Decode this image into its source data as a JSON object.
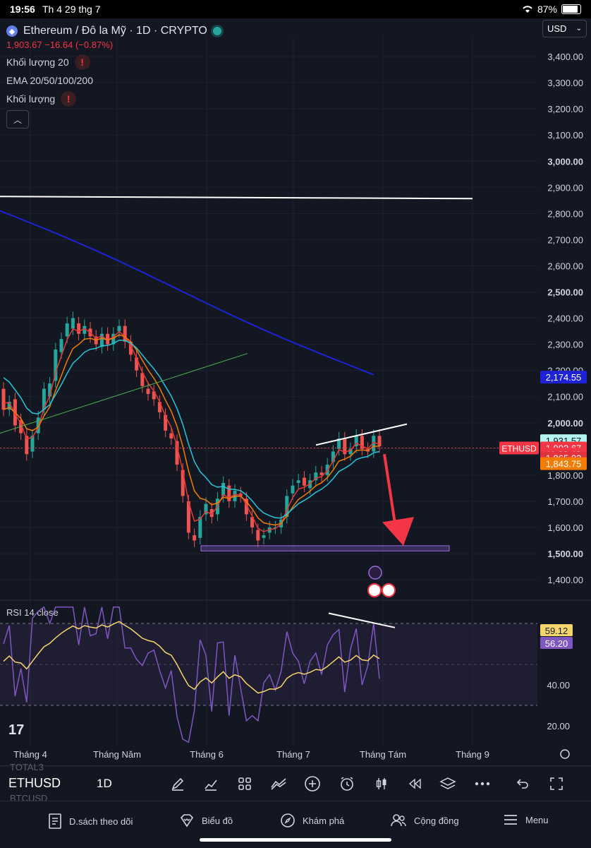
{
  "status_bar": {
    "time": "19:56",
    "date": "Th 4 29 thg 7",
    "battery": "87%",
    "battery_level": 0.87
  },
  "header": {
    "title": "Ethereum / Đô la Mỹ · 1D · CRYPTO",
    "price": "1,903.67",
    "change": "−16.64 (−0.87%)",
    "currency": "USD"
  },
  "indicators": [
    {
      "label": "Khối lượng 20",
      "warning": true
    },
    {
      "label": "EMA 20/50/100/200",
      "warning": false
    },
    {
      "label": "Khối lượng",
      "warning": true
    }
  ],
  "price_axis": {
    "ticks": [
      "3,400.00",
      "3,300.00",
      "3,200.00",
      "3,100.00",
      "3,000.00",
      "2,900.00",
      "2,800.00",
      "2,700.00",
      "2,600.00",
      "2,500.00",
      "2,400.00",
      "2,300.00",
      "2,200.00",
      "2,100.00",
      "2,000.00",
      "1,900.00",
      "1,800.00",
      "1,700.00",
      "1,600.00",
      "1,500.00",
      "1,400.00"
    ],
    "bold_ticks": [
      "3,000.00",
      "2,500.00",
      "2,000.00",
      "1,500.00"
    ]
  },
  "price_tags": [
    {
      "label": "2,174.55",
      "value": 2174.55,
      "bg": "#1e22d6",
      "color": "#ffffff"
    },
    {
      "label": "1,931.57",
      "value": 1931.57,
      "bg": "#b2f5f1",
      "color": "#131722"
    },
    {
      "label": "1,903.67",
      "value": 1903.67,
      "bg": "#f23645",
      "color": "#ffffff"
    },
    {
      "label": "11:03:43",
      "value": 1880,
      "bg": "#f23645",
      "color": "#ffffff"
    },
    {
      "label": "1,865.82",
      "value": 1865.82,
      "bg": "#e0333f",
      "color": "#ffffff"
    },
    {
      "label": "1,843.75",
      "value": 1843.75,
      "bg": "#f57c00",
      "color": "#ffffff"
    }
  ],
  "symbol_tag": "ETHUSD",
  "time_axis": [
    "Tháng 4",
    "Tháng Năm",
    "Tháng 6",
    "Tháng 7",
    "Tháng Tám",
    "Tháng 9"
  ],
  "rsi": {
    "title": "RSI 14 close",
    "ticks": [
      "40.00",
      "20.00"
    ],
    "tags": [
      {
        "label": "59.12",
        "bg": "#f7d56a",
        "color": "#131722"
      },
      {
        "label": "56.20",
        "bg": "#7e57c2",
        "color": "#ffffff"
      }
    ]
  },
  "toolbar": {
    "symbol": "ETHUSD",
    "timeframe": "1D",
    "ghost_top": "TOTAL3",
    "ghost_bottom": "BTCUSD"
  },
  "tabs": [
    {
      "label": "D.sách theo dõi",
      "icon": "watchlist-icon"
    },
    {
      "label": "Biểu đồ",
      "icon": "chart-icon"
    },
    {
      "label": "Khám phá",
      "icon": "compass-icon"
    },
    {
      "label": "Cộng đồng",
      "icon": "community-icon"
    },
    {
      "label": "Menu",
      "icon": "menu-icon"
    }
  ],
  "chart_data": {
    "type": "candlestick",
    "symbol": "ETHUSD",
    "timeframe": "1D",
    "ylim": [
      1350,
      3450
    ],
    "x_labels": [
      "Tháng 4",
      "Tháng Năm",
      "Tháng 6",
      "Tháng 7",
      "Tháng Tám",
      "Tháng 9"
    ],
    "price_path": [
      [
        0,
        2130,
        2050
      ],
      [
        4,
        2050,
        2080
      ],
      [
        8,
        2090,
        1990
      ],
      [
        12,
        2010,
        1960
      ],
      [
        16,
        1950,
        1880
      ],
      [
        20,
        1890,
        1950
      ],
      [
        24,
        1960,
        2020
      ],
      [
        28,
        2050,
        2130
      ],
      [
        32,
        2100,
        2150
      ],
      [
        36,
        2160,
        2280
      ],
      [
        40,
        2270,
        2320
      ],
      [
        44,
        2330,
        2380
      ],
      [
        48,
        2360,
        2400
      ],
      [
        52,
        2380,
        2340
      ],
      [
        56,
        2340,
        2370
      ],
      [
        60,
        2360,
        2330
      ],
      [
        64,
        2330,
        2300
      ],
      [
        68,
        2290,
        2340
      ],
      [
        72,
        2340,
        2300
      ],
      [
        76,
        2300,
        2340
      ],
      [
        80,
        2350,
        2370
      ],
      [
        84,
        2370,
        2310
      ],
      [
        88,
        2310,
        2260
      ],
      [
        92,
        2250,
        2200
      ],
      [
        96,
        2190,
        2140
      ],
      [
        100,
        2130,
        2110
      ],
      [
        104,
        2120,
        2090
      ],
      [
        108,
        2080,
        2040
      ],
      [
        112,
        2030,
        1970
      ],
      [
        116,
        1960,
        1940
      ],
      [
        120,
        1930,
        1840
      ],
      [
        124,
        1820,
        1720
      ],
      [
        128,
        1700,
        1580
      ],
      [
        132,
        1570,
        1550
      ],
      [
        136,
        1560,
        1640
      ],
      [
        140,
        1650,
        1690
      ],
      [
        144,
        1670,
        1640
      ],
      [
        148,
        1650,
        1710
      ],
      [
        152,
        1720,
        1770
      ],
      [
        156,
        1760,
        1700
      ],
      [
        160,
        1700,
        1740
      ],
      [
        164,
        1730,
        1720
      ],
      [
        168,
        1710,
        1650
      ],
      [
        172,
        1640,
        1600
      ],
      [
        176,
        1590,
        1550
      ],
      [
        180,
        1560,
        1570
      ],
      [
        184,
        1580,
        1600
      ],
      [
        188,
        1600,
        1600
      ],
      [
        192,
        1600,
        1630
      ],
      [
        196,
        1640,
        1720
      ],
      [
        200,
        1730,
        1760
      ],
      [
        204,
        1770,
        1780
      ],
      [
        208,
        1790,
        1760
      ],
      [
        212,
        1750,
        1780
      ],
      [
        216,
        1780,
        1810
      ],
      [
        220,
        1810,
        1800
      ],
      [
        224,
        1800,
        1840
      ],
      [
        228,
        1850,
        1890
      ],
      [
        232,
        1900,
        1940
      ],
      [
        236,
        1940,
        1880
      ],
      [
        240,
        1880,
        1900
      ],
      [
        244,
        1910,
        1950
      ],
      [
        248,
        1950,
        1900
      ],
      [
        252,
        1900,
        1890
      ],
      [
        256,
        1890,
        1950
      ],
      [
        260,
        1950,
        1910
      ]
    ],
    "annotations": {
      "resistance_level": 2865,
      "support_zone": [
        1510,
        1530
      ],
      "bearish_arrow_target": 1530
    }
  }
}
